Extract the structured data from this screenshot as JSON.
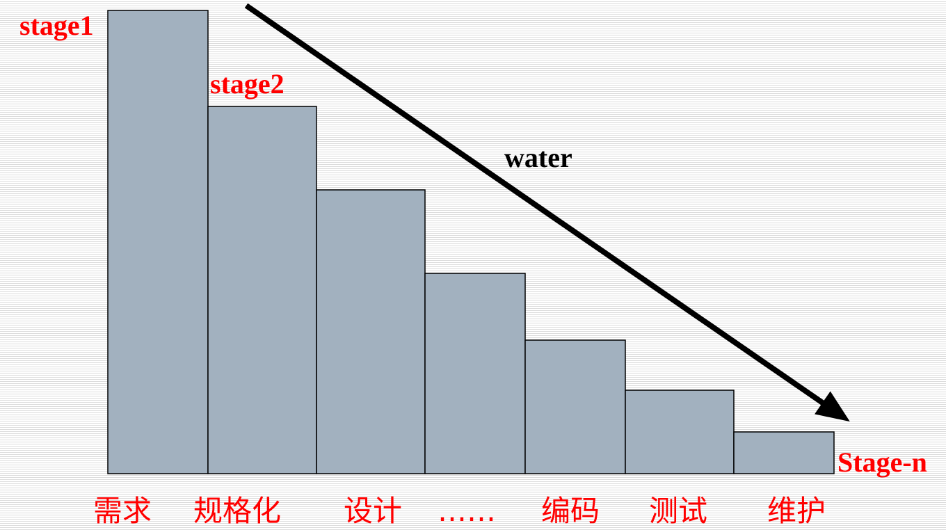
{
  "labels": {
    "first_stage": "stage1",
    "second_stage": "stage2",
    "last_stage": "Stage-n",
    "flow": "water"
  },
  "phases": [
    "需求",
    "规格化",
    "设计",
    "……",
    "编码",
    "测试",
    "维护"
  ],
  "colors": {
    "step_fill": "#a2b1bf",
    "label_red": "#ff0000",
    "arrow": "#000000"
  }
}
